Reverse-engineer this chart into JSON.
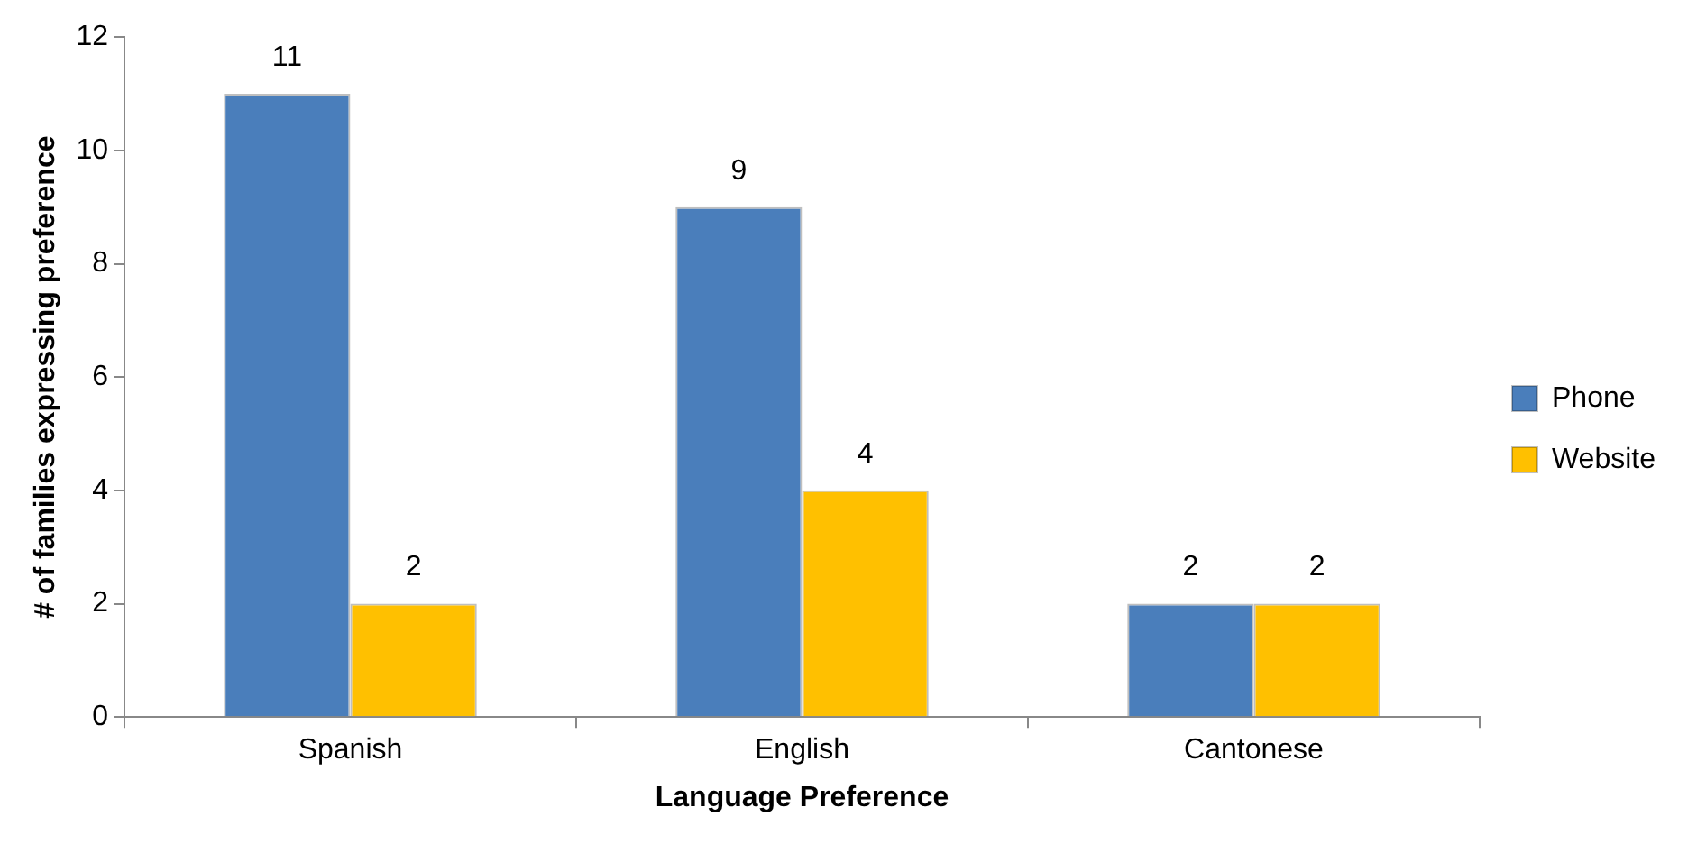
{
  "chart_data": {
    "type": "bar",
    "xlabel": "Language Preference",
    "ylabel": "# of families expressing preference",
    "categories": [
      "Spanish",
      "English",
      "Cantonese"
    ],
    "series": [
      {
        "name": "Phone",
        "color": "#4a7ebb",
        "values": [
          11,
          9,
          2
        ]
      },
      {
        "name": "Website",
        "color": "#ffc000",
        "values": [
          2,
          4,
          2
        ]
      }
    ],
    "ylim": [
      0,
      12
    ],
    "yticks": [
      0,
      2,
      4,
      6,
      8,
      10,
      12
    ],
    "data_labels": true,
    "legend": "right"
  }
}
